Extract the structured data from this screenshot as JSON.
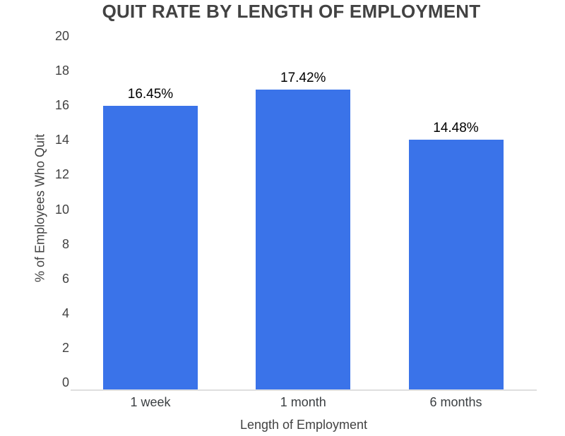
{
  "chart_data": {
    "type": "bar",
    "title": "QUIT RATE BY LENGTH OF EMPLOYMENT",
    "xlabel": "Length of Employment",
    "ylabel": "% of Employees Who Quit",
    "categories": [
      "1 week",
      "1 month",
      "6 months"
    ],
    "values": [
      16.45,
      17.42,
      14.48
    ],
    "bar_labels": [
      "16.45%",
      "17.42%",
      "14.48%"
    ],
    "ylim": [
      0,
      20
    ],
    "yticks": [
      20,
      18,
      16,
      14,
      12,
      10,
      8,
      6,
      4,
      2,
      0
    ],
    "grid": false,
    "legend": false,
    "colors": {
      "bar": "#3a73e9",
      "axis_line": "#dfdfdf",
      "title_text": "#424242",
      "tick_text": "#424242",
      "x_tick_text": "#3c4043",
      "bar_label_text": "#000000"
    }
  }
}
